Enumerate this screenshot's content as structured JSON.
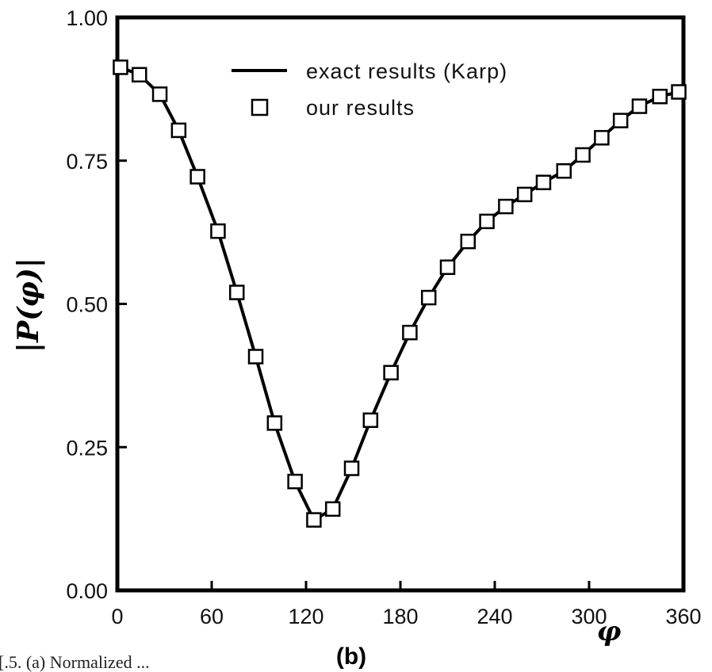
{
  "chart_data": {
    "type": "line",
    "xlabel": "φ",
    "ylabel": "|P(φ)|",
    "panel_label": "(b)",
    "xlim": [
      0,
      360
    ],
    "ylim": [
      0,
      1
    ],
    "xticks": [
      0,
      60,
      120,
      180,
      240,
      300,
      360
    ],
    "xtick_labels": [
      "0",
      "60",
      "120",
      "180",
      "240",
      "300",
      "360"
    ],
    "yticks": [
      0,
      0.25,
      0.5,
      0.75,
      1.0
    ],
    "ytick_labels": [
      "0.00",
      "0.25",
      "0.50",
      "0.75",
      "1.00"
    ],
    "grid": false,
    "legend_position": "top-right",
    "series": [
      {
        "name": "exact results (Karp)",
        "style": "solid line",
        "x": [
          2,
          14,
          27,
          39,
          51,
          64,
          76,
          88,
          100,
          113,
          125,
          137,
          149,
          161,
          174,
          186,
          198,
          210,
          223,
          235,
          247,
          259,
          271,
          284,
          296,
          308,
          320,
          332,
          345,
          357
        ],
        "values": [
          0.913,
          0.9,
          0.866,
          0.803,
          0.722,
          0.627,
          0.52,
          0.408,
          0.292,
          0.19,
          0.123,
          0.142,
          0.213,
          0.297,
          0.38,
          0.45,
          0.511,
          0.564,
          0.609,
          0.644,
          0.67,
          0.691,
          0.712,
          0.732,
          0.76,
          0.79,
          0.82,
          0.845,
          0.862,
          0.87
        ]
      },
      {
        "name": "our results",
        "style": "open square markers",
        "x": [
          2,
          14,
          27,
          39,
          51,
          64,
          76,
          88,
          100,
          113,
          125,
          137,
          149,
          161,
          174,
          186,
          198,
          210,
          223,
          235,
          247,
          259,
          271,
          284,
          296,
          308,
          320,
          332,
          345,
          357
        ],
        "values": [
          0.913,
          0.9,
          0.866,
          0.803,
          0.722,
          0.627,
          0.52,
          0.408,
          0.292,
          0.19,
          0.123,
          0.142,
          0.213,
          0.297,
          0.38,
          0.45,
          0.511,
          0.564,
          0.609,
          0.644,
          0.67,
          0.691,
          0.712,
          0.732,
          0.76,
          0.79,
          0.82,
          0.845,
          0.862,
          0.87
        ]
      }
    ]
  },
  "caption": "[.5. (a) Normalized ...",
  "colors": {
    "line": "#000000",
    "marker_fill": "#ffffff",
    "marker_stroke": "#000000",
    "axes": "#000000"
  }
}
